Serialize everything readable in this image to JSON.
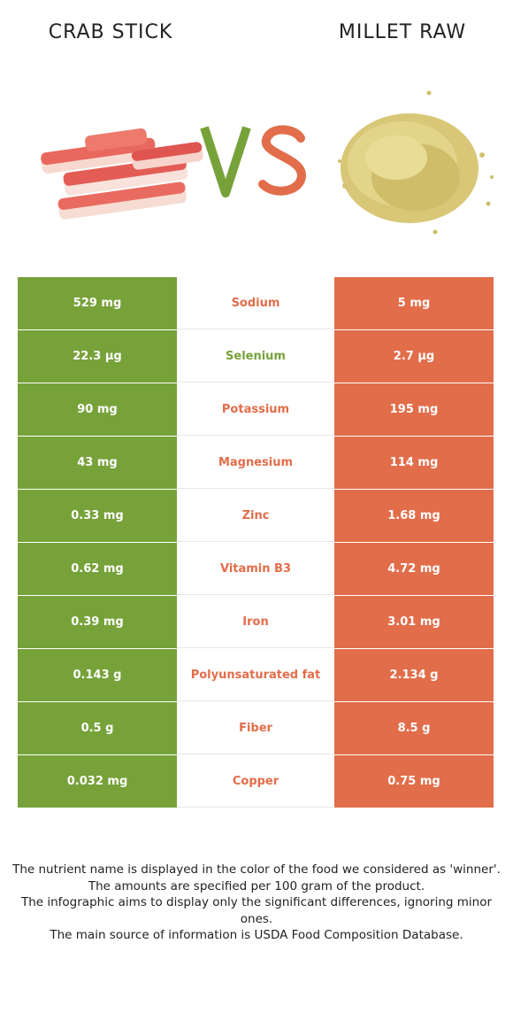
{
  "header": {
    "left_food": "CRAB STICK",
    "right_food": "MILLET RAW",
    "vs_text": "VS"
  },
  "colors": {
    "left_food_color": "#77a23a",
    "right_food_color": "#e26d4a"
  },
  "nutrients": [
    {
      "left": "529 mg",
      "name": "Sodium",
      "right": "5 mg",
      "winner": "right"
    },
    {
      "left": "22.3 µg",
      "name": "Selenium",
      "right": "2.7 µg",
      "winner": "left"
    },
    {
      "left": "90 mg",
      "name": "Potassium",
      "right": "195 mg",
      "winner": "right"
    },
    {
      "left": "43 mg",
      "name": "Magnesium",
      "right": "114 mg",
      "winner": "right"
    },
    {
      "left": "0.33 mg",
      "name": "Zinc",
      "right": "1.68 mg",
      "winner": "right"
    },
    {
      "left": "0.62 mg",
      "name": "Vitamin B3",
      "right": "4.72 mg",
      "winner": "right"
    },
    {
      "left": "0.39 mg",
      "name": "Iron",
      "right": "3.01 mg",
      "winner": "right"
    },
    {
      "left": "0.143 g",
      "name": "Polyunsaturated fat",
      "right": "2.134 g",
      "winner": "right"
    },
    {
      "left": "0.5 g",
      "name": "Fiber",
      "right": "8.5 g",
      "winner": "right"
    },
    {
      "left": "0.032 mg",
      "name": "Copper",
      "right": "0.75 mg",
      "winner": "right"
    }
  ],
  "footnotes": [
    "The nutrient name is displayed in the color of the food we considered as 'winner'.",
    "The amounts are specified per 100 gram of the product.",
    "The infographic aims to display only the significant differences, ignoring minor ones.",
    "The main source of information is USDA Food Composition Database."
  ]
}
